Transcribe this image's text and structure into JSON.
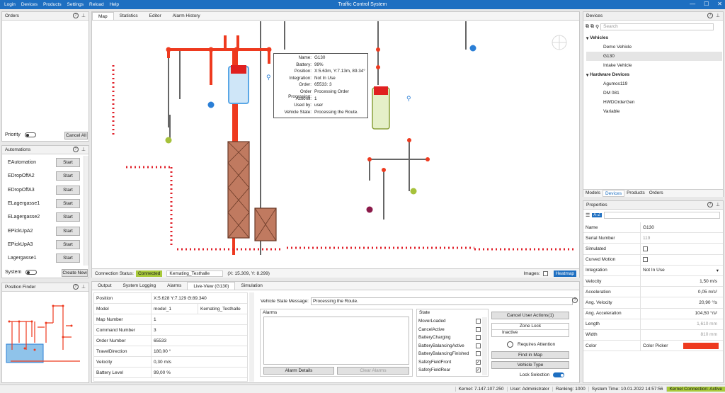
{
  "app": {
    "title": "Traffic Control System",
    "menu": [
      "Login",
      "Devices",
      "Products",
      "Settings",
      "Reload",
      "Help"
    ]
  },
  "orders": {
    "title": "Orders",
    "priority_label": "Priority",
    "cancel_all": "Cancel All"
  },
  "automations": {
    "title": "Automations",
    "start_label": "Start",
    "items": [
      "EAutomation",
      "EDropOffA2",
      "EDropOffA3",
      "ELagergasse1",
      "ELagergasse2",
      "EPickUpA2",
      "EPickUpA3",
      "Lagergasse1"
    ],
    "system_label": "System",
    "create_new": "Create New"
  },
  "position_finder": {
    "title": "Position Finder"
  },
  "map": {
    "tabs": [
      "Map",
      "Statistics",
      "Editor",
      "Alarm History"
    ],
    "tooltip": {
      "rows": [
        [
          "Name:",
          "G130"
        ],
        [
          "Battery:",
          "99%"
        ],
        [
          "Position:",
          "X:5.63m, Y:7.13m, 89.34°"
        ],
        [
          "Integration:",
          "Not In Use"
        ],
        [
          "Order:",
          "65533: 3"
        ],
        [
          "Order Processing:",
          "Processing Order"
        ],
        [
          "Actions:",
          "1"
        ],
        [
          "Used by:",
          "user"
        ],
        [
          "Vehicle State:",
          "Processing the Route."
        ]
      ]
    },
    "status_label": "Connection Status:",
    "status_value": "Connected",
    "location": "Kemating_Testhalle",
    "coords": "(X: 15.309, Y: 8.299)",
    "images_label": "Images:",
    "heatmap": "Heatmap"
  },
  "bottom": {
    "tabs": [
      "Output",
      "System Logging",
      "Alarms",
      "Live-View (G130)",
      "Simulation"
    ],
    "props": [
      [
        "Position",
        "X:5.628  Y:7.129  Θ:89.340",
        ""
      ],
      [
        "Model",
        "model_1",
        "Kemating_Testhalle"
      ],
      [
        "Map Number",
        "1",
        ""
      ],
      [
        "Command Number",
        "3",
        ""
      ],
      [
        "Order Number",
        "65533",
        ""
      ],
      [
        "TravelDirection",
        "180,00 °",
        ""
      ],
      [
        "Velocity",
        "0,30 m/s",
        ""
      ],
      [
        "Battery Level",
        "99,00 %",
        ""
      ]
    ],
    "vsm_label": "Vehicle State Message:",
    "vsm_value": "Processing the Route.",
    "alarms_label": "Alarms",
    "alarm_details": "Alarm Details",
    "clear_alarms": "Clear Alarms",
    "state_label": "State",
    "states": [
      [
        "MoverLoaded",
        false
      ],
      [
        "CancelActive",
        false
      ],
      [
        "BatteryCharging",
        false
      ],
      [
        "BatteryBalancingActive",
        false
      ],
      [
        "BatteryBalancingFinished",
        false
      ],
      [
        "SafetyFieldFront",
        true
      ],
      [
        "SafetyFieldRear",
        true
      ]
    ],
    "cancel_user_actions": "Cancel User Actions(1)",
    "zone_lock": "Zone Lock",
    "inactive": "Inactive",
    "requires_attention": "Requires Attention",
    "find_in_map": "Find in Map",
    "vehicle_type": "Vehicle Type",
    "lock_selection": "Lock Selection"
  },
  "devices": {
    "title": "Devices",
    "search_placeholder": "Search",
    "vehicles_label": "Vehicles",
    "vehicles": [
      "Demo Vehicle",
      "G130",
      "Intake Vehicle"
    ],
    "hardware_label": "Hardware Devices",
    "hardware": [
      "Agumos119",
      "DM 081",
      "HWDOrderGen",
      "Variable"
    ],
    "tabs": [
      "Models",
      "Devices",
      "Products",
      "Orders"
    ]
  },
  "properties": {
    "title": "Properties",
    "sort": "A-Z",
    "rows": [
      [
        "Name",
        "G130",
        ""
      ],
      [
        "Serial Number",
        "119",
        ""
      ],
      [
        "Simulated",
        "",
        ""
      ],
      [
        "Curved Motion",
        "",
        ""
      ],
      [
        "Integration",
        "Not In Use",
        ""
      ],
      [
        "Velocity",
        "1,50 m/s",
        ""
      ],
      [
        "Acceleration",
        "0,05 m/s²",
        ""
      ],
      [
        "Ang. Velocity",
        "20,90 °/s",
        ""
      ],
      [
        "Ang. Acceleration",
        "104,50 °/s²",
        ""
      ],
      [
        "Length",
        "1,610 mm",
        ""
      ],
      [
        "Width",
        "810 mm",
        ""
      ],
      [
        "Color",
        "Color Picker",
        ""
      ]
    ]
  },
  "status": {
    "kernel": "Kernel: 7.147.107.250",
    "user": "User: Administrator",
    "ranking": "Ranking: 1000",
    "time": "System Time: 10.01.2022 14:57:56",
    "conn": "Kernel Connection: Active"
  },
  "colors": {
    "accent": "#1e6fc1",
    "route": "#ee3a1f",
    "connected": "#a8c93a",
    "dot_blue": "#2b7fd6",
    "dot_green": "#a6c13a"
  }
}
